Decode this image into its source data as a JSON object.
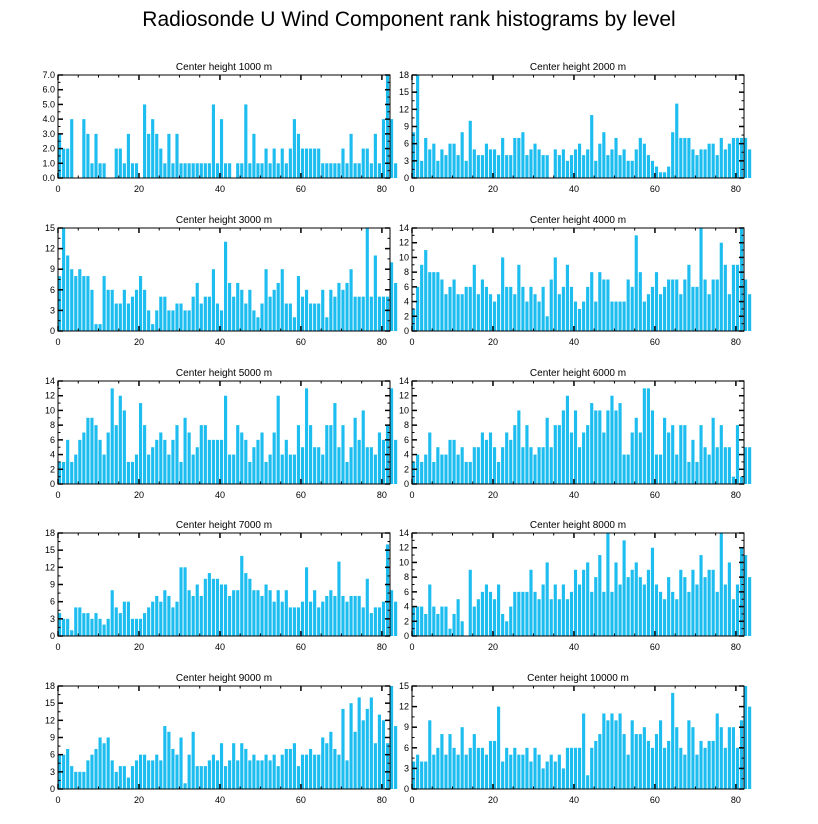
{
  "title": "Radiosonde U Wind Component rank histograms by level",
  "bar_color": "#1ebdf0",
  "axis_color": "#000000",
  "chart_data": [
    {
      "type": "bar",
      "title": "Center height 1000 m",
      "xlim": [
        0,
        82
      ],
      "ylim": [
        0,
        7
      ],
      "xticks": [
        0,
        20,
        40,
        60,
        80
      ],
      "yticks": [
        0,
        1,
        2,
        3,
        4,
        5,
        6,
        7
      ],
      "ytick_labels": [
        "0.0",
        "1.0",
        "2.0",
        "3.0",
        "4.0",
        "5.0",
        "6.0",
        "7.0"
      ],
      "values": [
        3,
        2,
        2,
        4,
        0,
        0,
        4,
        3,
        1,
        3,
        1,
        1,
        0,
        0,
        2,
        2,
        1,
        3,
        1,
        1,
        0,
        5,
        3,
        4,
        3,
        2,
        1,
        3,
        1,
        3,
        1,
        1,
        1,
        1,
        1,
        1,
        1,
        1,
        5,
        1,
        4,
        1,
        1,
        0,
        1,
        1,
        5,
        1,
        3,
        1,
        1,
        2,
        1,
        2,
        1,
        2,
        1,
        2,
        4,
        3,
        2,
        2,
        2,
        2,
        2,
        1,
        1,
        1,
        1,
        1,
        2,
        1,
        3,
        1,
        1,
        2,
        2,
        1,
        3,
        1,
        4,
        7,
        4,
        1
      ]
    },
    {
      "type": "bar",
      "title": "Center height 2000 m",
      "xlim": [
        0,
        82
      ],
      "ylim": [
        0,
        18
      ],
      "xticks": [
        0,
        20,
        40,
        60,
        80
      ],
      "yticks": [
        0,
        3,
        6,
        9,
        12,
        15,
        18
      ],
      "ytick_labels": [
        "0",
        "3",
        "6",
        "9",
        "12",
        "15",
        "18"
      ],
      "values": [
        8,
        18,
        3,
        7,
        5,
        6,
        3,
        5,
        4,
        6,
        6,
        4,
        8,
        3,
        10,
        5,
        4,
        4,
        6,
        5,
        5,
        4,
        7,
        4,
        4,
        7,
        7,
        8,
        4,
        5,
        6,
        5,
        4,
        4,
        0,
        5,
        4,
        5,
        3,
        4,
        5,
        6,
        4,
        5,
        11,
        3,
        6,
        8,
        4,
        5,
        7,
        4,
        5,
        3,
        3,
        5,
        7,
        6,
        4,
        3,
        2,
        1,
        1,
        2,
        8,
        13,
        7,
        7,
        7,
        5,
        4,
        5,
        5,
        6,
        6,
        4,
        7,
        5,
        6,
        7,
        7,
        7,
        7,
        5
      ]
    },
    {
      "type": "bar",
      "title": "Center height 3000 m",
      "xlim": [
        0,
        82
      ],
      "ylim": [
        0,
        15
      ],
      "xticks": [
        0,
        20,
        40,
        60,
        80
      ],
      "yticks": [
        0,
        3,
        6,
        9,
        12,
        15
      ],
      "ytick_labels": [
        "0",
        "3",
        "6",
        "9",
        "12",
        "15"
      ],
      "values": [
        8,
        15,
        11,
        9,
        8,
        9,
        8,
        8,
        6,
        1,
        1,
        8,
        6,
        6,
        4,
        4,
        6,
        4,
        5,
        6,
        8,
        6,
        3,
        1,
        3,
        5,
        5,
        3,
        3,
        4,
        4,
        3,
        3,
        5,
        7,
        4,
        5,
        5,
        9,
        4,
        3,
        13,
        7,
        5,
        7,
        6,
        4,
        6,
        3,
        2,
        4,
        9,
        5,
        6,
        7,
        9,
        4,
        4,
        2,
        8,
        5,
        6,
        4,
        4,
        4,
        6,
        2,
        6,
        5,
        7,
        6,
        7,
        9,
        5,
        5,
        5,
        15,
        5,
        11,
        5,
        5,
        5,
        10,
        7
      ]
    },
    {
      "type": "bar",
      "title": "Center height 4000 m",
      "xlim": [
        0,
        82
      ],
      "ylim": [
        0,
        14
      ],
      "xticks": [
        0,
        20,
        40,
        60,
        80
      ],
      "yticks": [
        0,
        2,
        4,
        6,
        8,
        10,
        12,
        14
      ],
      "ytick_labels": [
        "0",
        "2",
        "4",
        "6",
        "8",
        "10",
        "12",
        "14"
      ],
      "values": [
        3,
        6,
        9,
        11,
        8,
        8,
        8,
        7,
        5,
        6,
        7,
        5,
        5,
        6,
        6,
        9,
        5,
        7,
        6,
        5,
        4,
        5,
        10,
        6,
        6,
        5,
        9,
        6,
        4,
        6,
        5,
        4,
        6,
        2,
        7,
        10,
        5,
        6,
        9,
        6,
        4,
        3,
        4,
        6,
        8,
        4,
        8,
        7,
        7,
        4,
        4,
        4,
        4,
        7,
        6,
        13,
        8,
        4,
        5,
        6,
        8,
        5,
        6,
        7,
        7,
        7,
        5,
        7,
        9,
        6,
        6,
        14,
        7,
        5,
        7,
        7,
        12,
        9,
        5,
        9,
        9,
        14,
        7,
        5
      ]
    },
    {
      "type": "bar",
      "title": "Center height 5000 m",
      "xlim": [
        0,
        82
      ],
      "ylim": [
        0,
        14
      ],
      "xticks": [
        0,
        20,
        40,
        60,
        80
      ],
      "yticks": [
        0,
        2,
        4,
        6,
        8,
        10,
        12,
        14
      ],
      "ytick_labels": [
        "0",
        "2",
        "4",
        "6",
        "8",
        "10",
        "12",
        "14"
      ],
      "values": [
        3,
        3,
        6,
        3,
        4,
        6,
        7,
        9,
        9,
        8,
        6,
        4,
        7,
        13,
        8,
        12,
        10,
        3,
        3,
        4,
        11,
        8,
        4,
        5,
        6,
        7,
        6,
        4,
        6,
        8,
        3,
        9,
        7,
        4,
        5,
        8,
        8,
        6,
        6,
        6,
        6,
        12,
        4,
        4,
        8,
        7,
        6,
        3,
        5,
        6,
        7,
        3,
        4,
        7,
        12,
        4,
        6,
        4,
        4,
        8,
        5,
        13,
        8,
        5,
        5,
        4,
        8,
        8,
        11,
        5,
        8,
        3,
        5,
        9,
        6,
        10,
        5,
        5,
        4,
        7,
        6,
        8,
        13,
        6
      ]
    },
    {
      "type": "bar",
      "title": "Center height 6000 m",
      "xlim": [
        0,
        82
      ],
      "ylim": [
        0,
        14
      ],
      "xticks": [
        0,
        20,
        40,
        60,
        80
      ],
      "yticks": [
        0,
        2,
        4,
        6,
        8,
        10,
        12,
        14
      ],
      "ytick_labels": [
        "0",
        "2",
        "4",
        "6",
        "8",
        "10",
        "12",
        "14"
      ],
      "values": [
        3,
        4,
        3,
        4,
        7,
        3,
        5,
        4,
        4,
        6,
        6,
        4,
        5,
        3,
        3,
        5,
        5,
        7,
        6,
        7,
        5,
        3,
        5,
        7,
        6,
        8,
        10,
        5,
        8,
        5,
        4,
        5,
        5,
        9,
        5,
        8,
        8,
        10,
        12,
        7,
        10,
        5,
        7,
        8,
        11,
        10,
        10,
        7,
        10,
        12,
        10,
        11,
        4,
        4,
        7,
        9,
        7,
        13,
        13,
        10,
        4,
        4,
        9,
        7,
        8,
        4,
        8,
        8,
        3,
        6,
        3,
        8,
        5,
        4,
        9,
        5,
        8,
        5,
        5,
        1,
        8,
        1,
        5,
        5
      ]
    },
    {
      "type": "bar",
      "title": "Center height 7000 m",
      "xlim": [
        0,
        82
      ],
      "ylim": [
        0,
        18
      ],
      "xticks": [
        0,
        20,
        40,
        60,
        80
      ],
      "yticks": [
        0,
        3,
        6,
        9,
        12,
        15,
        18
      ],
      "ytick_labels": [
        "0",
        "3",
        "6",
        "9",
        "12",
        "15",
        "18"
      ],
      "values": [
        4,
        3,
        3,
        1,
        5,
        5,
        4,
        4,
        3,
        4,
        3,
        2,
        3,
        8,
        5,
        4,
        6,
        6,
        3,
        3,
        3,
        4,
        5,
        6,
        7,
        6,
        8,
        7,
        5,
        6,
        12,
        12,
        8,
        7,
        9,
        7,
        10,
        11,
        10,
        10,
        9,
        9,
        7,
        8,
        8,
        14,
        11,
        10,
        8,
        8,
        7,
        9,
        8,
        6,
        8,
        6,
        8,
        5,
        5,
        5,
        6,
        12,
        6,
        8,
        5,
        6,
        7,
        8,
        7,
        13,
        7,
        6,
        7,
        7,
        7,
        5,
        10,
        4,
        5,
        5,
        6,
        16,
        8,
        6
      ]
    },
    {
      "type": "bar",
      "title": "Center height 8000 m",
      "xlim": [
        0,
        82
      ],
      "ylim": [
        0,
        14
      ],
      "xticks": [
        0,
        20,
        40,
        60,
        80
      ],
      "yticks": [
        0,
        2,
        4,
        6,
        8,
        10,
        12,
        14
      ],
      "ytick_labels": [
        "0",
        "2",
        "4",
        "6",
        "8",
        "10",
        "12",
        "14"
      ],
      "values": [
        4,
        4,
        4,
        3,
        7,
        4,
        3,
        4,
        4,
        1,
        3,
        5,
        2,
        0,
        9,
        4,
        5,
        6,
        7,
        6,
        5,
        7,
        3,
        2,
        4,
        6,
        6,
        6,
        6,
        9,
        6,
        5,
        7,
        10,
        5,
        7,
        5,
        7,
        5,
        6,
        9,
        7,
        9,
        10,
        6,
        8,
        11,
        6,
        14,
        6,
        10,
        7,
        13,
        8,
        9,
        10,
        8,
        7,
        9,
        12,
        7,
        6,
        5,
        8,
        6,
        5,
        9,
        8,
        6,
        9,
        7,
        11,
        8,
        9,
        9,
        6,
        14,
        7,
        10,
        5,
        7,
        12,
        11,
        8
      ]
    },
    {
      "type": "bar",
      "title": "Center height 9000 m",
      "xlim": [
        0,
        82
      ],
      "ylim": [
        0,
        18
      ],
      "xticks": [
        0,
        20,
        40,
        60,
        80
      ],
      "yticks": [
        0,
        3,
        6,
        9,
        12,
        15,
        18
      ],
      "ytick_labels": [
        "0",
        "3",
        "6",
        "9",
        "12",
        "15",
        "18"
      ],
      "values": [
        6,
        6,
        7,
        4,
        3,
        3,
        3,
        5,
        6,
        7,
        9,
        8,
        9,
        5,
        3,
        4,
        4,
        2,
        4,
        5,
        6,
        6,
        5,
        5,
        6,
        5,
        11,
        10,
        7,
        6,
        9,
        1,
        6,
        10,
        4,
        4,
        4,
        5,
        6,
        5,
        8,
        4,
        5,
        8,
        5,
        8,
        7,
        5,
        6,
        5,
        5,
        6,
        5,
        6,
        4,
        6,
        7,
        7,
        8,
        4,
        6,
        6,
        7,
        6,
        6,
        9,
        8,
        10,
        7,
        6,
        14,
        5,
        15,
        10,
        16,
        12,
        14,
        16,
        8,
        13,
        12,
        8,
        18,
        11
      ]
    },
    {
      "type": "bar",
      "title": "Center height 10000 m",
      "xlim": [
        0,
        82
      ],
      "ylim": [
        0,
        15
      ],
      "xticks": [
        0,
        20,
        40,
        60,
        80
      ],
      "yticks": [
        0,
        3,
        6,
        9,
        12,
        15
      ],
      "ytick_labels": [
        "0",
        "3",
        "6",
        "9",
        "12",
        "15"
      ],
      "values": [
        4,
        5,
        4,
        4,
        10,
        5,
        6,
        8,
        5,
        8,
        6,
        5,
        9,
        5,
        6,
        8,
        6,
        6,
        5,
        7,
        7,
        12,
        4,
        6,
        5,
        6,
        5,
        5,
        6,
        4,
        6,
        5,
        3,
        4,
        5,
        4,
        5,
        3,
        6,
        6,
        6,
        6,
        11,
        2,
        6,
        7,
        8,
        11,
        10,
        11,
        10,
        11,
        8,
        5,
        10,
        8,
        8,
        9,
        7,
        6,
        8,
        10,
        6,
        7,
        14,
        9,
        6,
        5,
        10,
        9,
        5,
        7,
        6,
        7,
        7,
        11,
        9,
        6,
        9,
        9,
        6,
        10,
        15,
        12
      ]
    }
  ]
}
